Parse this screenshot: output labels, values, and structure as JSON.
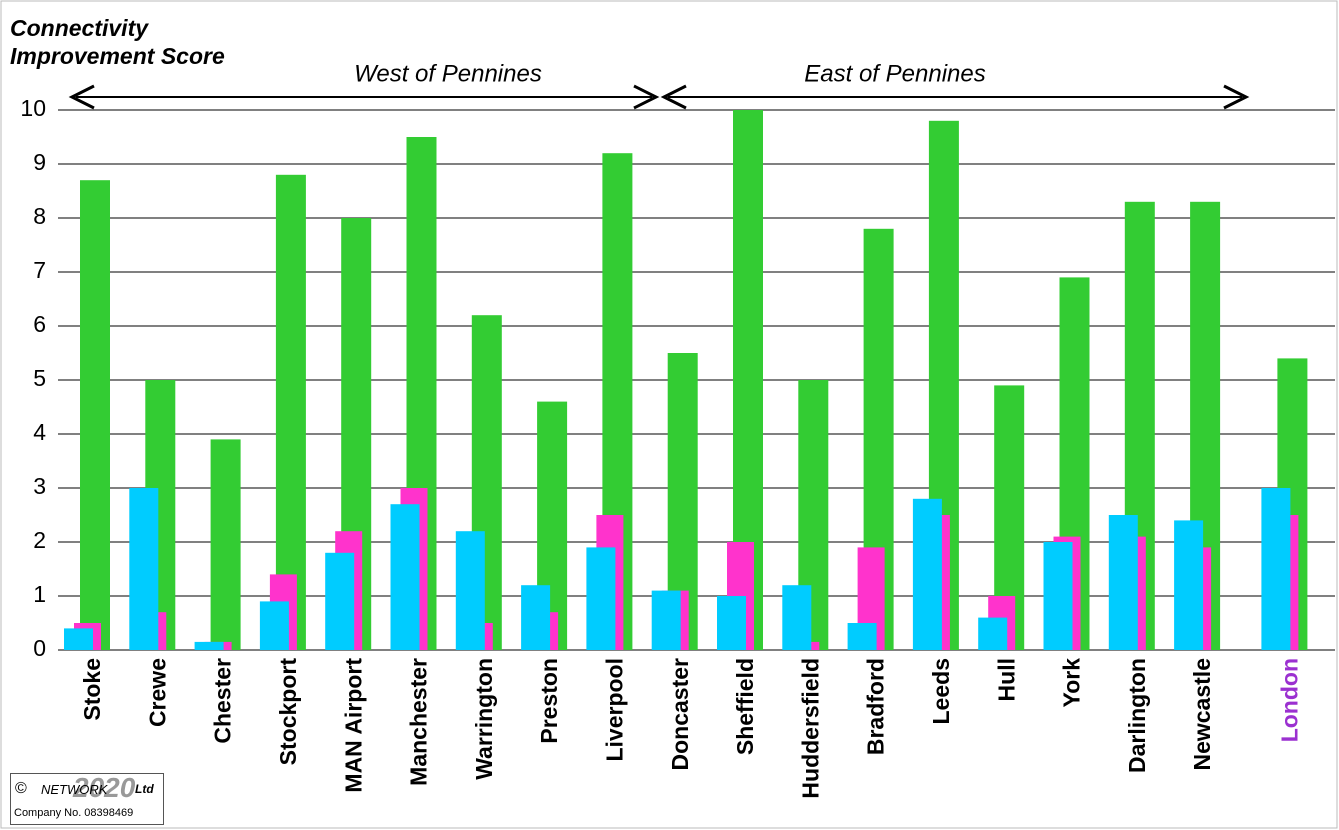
{
  "chart_data": {
    "type": "bar",
    "ylabel": "Connectivity Improvement Score",
    "categories": [
      "Stoke",
      "Crewe",
      "Chester",
      "Stockport",
      "MAN Airport",
      "Manchester",
      "Warrington",
      "Preston",
      "Liverpool",
      "Doncaster",
      "Sheffield",
      "Huddersfield",
      "Bradford",
      "Leeds",
      "Hull",
      "York",
      "Darlington",
      "Newcastle",
      "London"
    ],
    "label_colors": [
      "#000000",
      "#000000",
      "#000000",
      "#000000",
      "#000000",
      "#000000",
      "#000000",
      "#000000",
      "#000000",
      "#000000",
      "#000000",
      "#000000",
      "#000000",
      "#000000",
      "#000000",
      "#000000",
      "#000000",
      "#000000",
      "#9b30d0"
    ],
    "series": [
      {
        "color": "#33cc33",
        "values": [
          8.7,
          5.0,
          3.9,
          8.8,
          8.0,
          9.5,
          6.2,
          4.6,
          9.2,
          5.5,
          10.0,
          5.0,
          7.8,
          9.8,
          4.9,
          6.9,
          8.3,
          8.3,
          5.4
        ]
      },
      {
        "color": "#ff33cc",
        "values": [
          0.5,
          0.7,
          0.15,
          1.4,
          2.2,
          3.0,
          0.5,
          0.7,
          2.5,
          1.1,
          2.0,
          0.15,
          1.9,
          2.5,
          1.0,
          2.1,
          2.1,
          1.9,
          2.5
        ]
      },
      {
        "color": "#00ccff",
        "values": [
          0.4,
          3.0,
          0.15,
          0.9,
          1.8,
          2.7,
          2.2,
          1.2,
          1.9,
          1.1,
          1.0,
          1.2,
          0.5,
          2.8,
          0.6,
          2.0,
          2.5,
          2.4,
          3.0
        ]
      }
    ],
    "annotations": [
      "West of Pennines",
      "East of Pennines"
    ],
    "ylim": [
      0,
      10
    ],
    "yticks": [
      0,
      1,
      2,
      3,
      4,
      5,
      6,
      7,
      8,
      9,
      10
    ],
    "grid": true
  },
  "footer": {
    "symbol": "©",
    "company": "NETWORK",
    "year": "2020",
    "suffix": "Ltd",
    "number": "Company No. 08398469"
  }
}
